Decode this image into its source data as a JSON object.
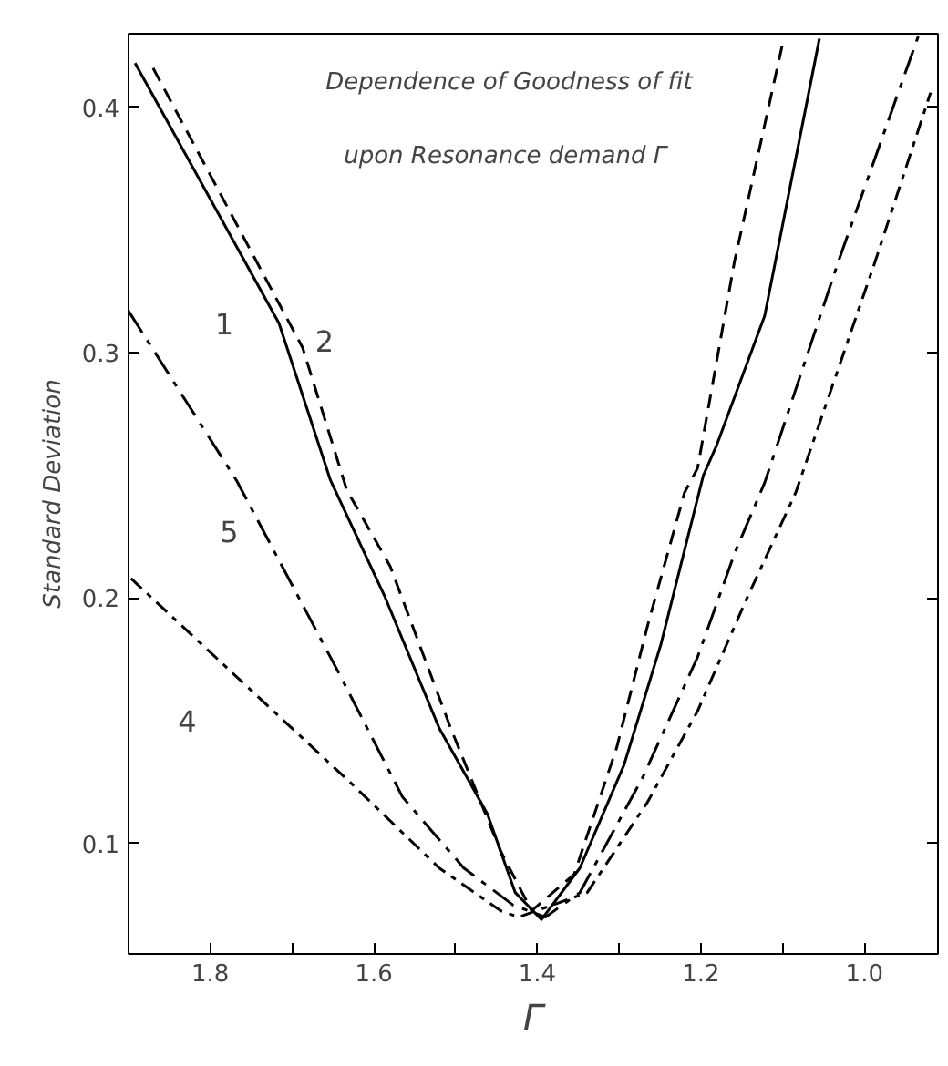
{
  "chart_data": {
    "type": "line",
    "title": "Dependence of Goodness of fit\nupon Resonance demand  Γ",
    "xlabel": "Γ",
    "ylabel": "Standard Deviation",
    "xlim": [
      1.9,
      0.91
    ],
    "ylim": [
      0.055,
      0.43
    ],
    "xticks": [
      1.8,
      {
        "value": 1.7,
        "label": null
      },
      1.6,
      {
        "value": 1.5,
        "label": null
      },
      1.4,
      {
        "value": 1.3,
        "label": null
      },
      1.2,
      {
        "value": 1.1,
        "label": null
      },
      {
        "value": 1.0,
        "label": "1.0"
      }
    ],
    "yticks": [
      0.1,
      0.2,
      0.3,
      0.4
    ],
    "grid": false,
    "marker": "none",
    "series": [
      {
        "name": "1",
        "color": "#000000",
        "line_style": "solid",
        "x": [
          1.892,
          1.716,
          1.653,
          1.587,
          1.52,
          1.461,
          1.427,
          1.395,
          1.348,
          1.294,
          1.249,
          1.197,
          1.181,
          1.122,
          1.055
        ],
        "values": [
          0.418,
          0.312,
          0.248,
          0.201,
          0.147,
          0.112,
          0.08,
          0.069,
          0.09,
          0.132,
          0.181,
          0.25,
          0.262,
          0.315,
          0.428
        ]
      },
      {
        "name": "2",
        "color": "#000000",
        "line_style": "dashed",
        "x": [
          1.87,
          1.687,
          1.633,
          1.58,
          1.506,
          1.445,
          1.407,
          1.355,
          1.303,
          1.265,
          1.22,
          1.204,
          1.159,
          1.1
        ],
        "values": [
          0.416,
          0.302,
          0.244,
          0.213,
          0.147,
          0.097,
          0.0726,
          0.0874,
          0.139,
          0.189,
          0.243,
          0.253,
          0.337,
          0.426
        ]
      },
      {
        "name": "5",
        "color": "#000000",
        "line_style": "dashdot",
        "x": [
          1.9,
          1.768,
          1.642,
          1.565,
          1.49,
          1.43,
          1.39,
          1.348,
          1.271,
          1.204,
          1.159,
          1.122,
          1.032,
          0.933
        ],
        "values": [
          0.317,
          0.248,
          0.169,
          0.119,
          0.09,
          0.075,
          0.07,
          0.08,
          0.127,
          0.176,
          0.218,
          0.247,
          0.337,
          0.43
        ]
      },
      {
        "name": "4",
        "color": "#000000",
        "line_style": "dotdash",
        "x": [
          1.897,
          1.739,
          1.626,
          1.52,
          1.445,
          1.423,
          1.339,
          1.265,
          1.204,
          1.145,
          1.084,
          0.987,
          0.919
        ],
        "values": [
          0.208,
          0.159,
          0.124,
          0.09,
          0.0726,
          0.07,
          0.08,
          0.117,
          0.154,
          0.199,
          0.243,
          0.337,
          0.406
        ]
      }
    ]
  }
}
